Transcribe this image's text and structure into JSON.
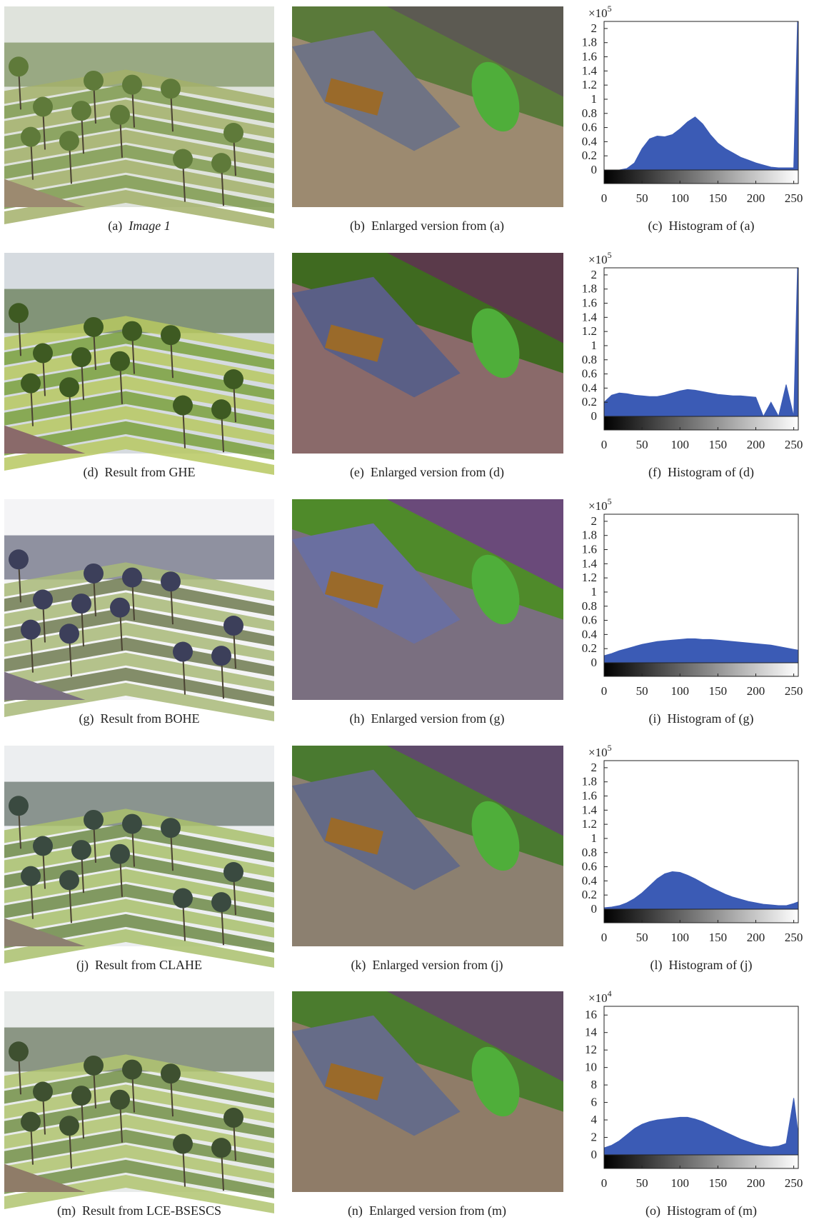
{
  "panels": [
    {
      "label": "(a)",
      "text": "Image 1"
    },
    {
      "label": "(b)",
      "text": "Enlarged version from (a)"
    },
    {
      "label": "(c)",
      "text": "Histogram of (a)"
    },
    {
      "label": "(d)",
      "text": "Result from GHE"
    },
    {
      "label": "(e)",
      "text": "Enlarged version from (d)"
    },
    {
      "label": "(f)",
      "text": "Histogram of (d)"
    },
    {
      "label": "(g)",
      "text": "Result from BOHE"
    },
    {
      "label": "(h)",
      "text": "Enlarged version from (g)"
    },
    {
      "label": "(i)",
      "text": "Histogram of (g)"
    },
    {
      "label": "(j)",
      "text": "Result from CLAHE"
    },
    {
      "label": "(k)",
      "text": "Enlarged version from (j)"
    },
    {
      "label": "(l)",
      "text": "Histogram of (j)"
    },
    {
      "label": "(m)",
      "text": "Result from LCE-BSESCS"
    },
    {
      "label": "(n)",
      "text": "Enlarged version from (m)"
    },
    {
      "label": "(o)",
      "text": "Histogram of (m)"
    }
  ],
  "chart_data": [
    {
      "type": "area",
      "scale_label": {
        "base": "×10",
        "exponent": "5"
      },
      "color": "#3b5bb5",
      "x": [
        0,
        10,
        20,
        30,
        40,
        50,
        60,
        70,
        80,
        90,
        100,
        110,
        120,
        130,
        140,
        150,
        160,
        170,
        180,
        190,
        200,
        210,
        220,
        230,
        240,
        250,
        255
      ],
      "values": [
        0,
        0,
        0,
        0.02,
        0.1,
        0.3,
        0.44,
        0.48,
        0.47,
        0.5,
        0.58,
        0.68,
        0.75,
        0.65,
        0.5,
        0.38,
        0.3,
        0.24,
        0.18,
        0.14,
        0.1,
        0.07,
        0.04,
        0.03,
        0.03,
        0.03,
        2.1
      ],
      "xlim": [
        0,
        256
      ],
      "xticks": [
        0,
        50,
        100,
        150,
        200,
        250
      ],
      "ylim": [
        0,
        2.1
      ],
      "yticks": [
        0,
        0.2,
        0.4,
        0.6,
        0.8,
        1,
        1.2,
        1.4,
        1.6,
        1.8,
        2
      ]
    },
    {
      "type": "area",
      "scale_label": {
        "base": "×10",
        "exponent": "5"
      },
      "color": "#3b5bb5",
      "x": [
        0,
        10,
        20,
        30,
        40,
        50,
        60,
        70,
        80,
        90,
        100,
        110,
        120,
        130,
        140,
        150,
        160,
        170,
        180,
        190,
        200,
        210,
        220,
        230,
        240,
        250,
        255
      ],
      "values": [
        0.2,
        0.3,
        0.33,
        0.32,
        0.3,
        0.29,
        0.28,
        0.28,
        0.3,
        0.33,
        0.36,
        0.38,
        0.37,
        0.35,
        0.33,
        0.31,
        0.3,
        0.29,
        0.29,
        0.28,
        0.27,
        0,
        0.2,
        0,
        0.45,
        0,
        2.1
      ],
      "xlim": [
        0,
        256
      ],
      "xticks": [
        0,
        50,
        100,
        150,
        200,
        250
      ],
      "ylim": [
        0,
        2.1
      ],
      "yticks": [
        0,
        0.2,
        0.4,
        0.6,
        0.8,
        1,
        1.2,
        1.4,
        1.6,
        1.8,
        2
      ]
    },
    {
      "type": "area",
      "scale_label": {
        "base": "×10",
        "exponent": "5"
      },
      "color": "#3b5bb5",
      "x": [
        0,
        10,
        20,
        30,
        40,
        50,
        60,
        70,
        80,
        90,
        100,
        110,
        120,
        130,
        140,
        150,
        160,
        170,
        180,
        190,
        200,
        210,
        220,
        230,
        240,
        250,
        255
      ],
      "values": [
        0.1,
        0.13,
        0.17,
        0.2,
        0.23,
        0.26,
        0.28,
        0.3,
        0.31,
        0.32,
        0.33,
        0.34,
        0.34,
        0.33,
        0.33,
        0.32,
        0.31,
        0.3,
        0.29,
        0.28,
        0.27,
        0.26,
        0.25,
        0.23,
        0.21,
        0.19,
        0.18
      ],
      "xlim": [
        0,
        256
      ],
      "xticks": [
        0,
        50,
        100,
        150,
        200,
        250
      ],
      "ylim": [
        0,
        2.1
      ],
      "yticks": [
        0,
        0.2,
        0.4,
        0.6,
        0.8,
        1,
        1.2,
        1.4,
        1.6,
        1.8,
        2
      ]
    },
    {
      "type": "area",
      "scale_label": {
        "base": "×10",
        "exponent": "5"
      },
      "color": "#3b5bb5",
      "x": [
        0,
        10,
        20,
        30,
        40,
        50,
        60,
        70,
        80,
        90,
        100,
        110,
        120,
        130,
        140,
        150,
        160,
        170,
        180,
        190,
        200,
        210,
        220,
        230,
        240,
        250,
        255
      ],
      "values": [
        0.02,
        0.03,
        0.05,
        0.09,
        0.15,
        0.23,
        0.33,
        0.43,
        0.5,
        0.53,
        0.52,
        0.48,
        0.43,
        0.37,
        0.31,
        0.26,
        0.21,
        0.17,
        0.14,
        0.11,
        0.09,
        0.07,
        0.06,
        0.05,
        0.05,
        0.08,
        0.1
      ],
      "xlim": [
        0,
        256
      ],
      "xticks": [
        0,
        50,
        100,
        150,
        200,
        250
      ],
      "ylim": [
        0,
        2.1
      ],
      "yticks": [
        0,
        0.2,
        0.4,
        0.6,
        0.8,
        1,
        1.2,
        1.4,
        1.6,
        1.8,
        2
      ]
    },
    {
      "type": "area",
      "scale_label": {
        "base": "×10",
        "exponent": "4"
      },
      "color": "#3b5bb5",
      "x": [
        0,
        10,
        20,
        30,
        40,
        50,
        60,
        70,
        80,
        90,
        100,
        110,
        120,
        130,
        140,
        150,
        160,
        170,
        180,
        190,
        200,
        210,
        220,
        230,
        240,
        250,
        255
      ],
      "values": [
        0.8,
        1.1,
        1.6,
        2.3,
        3,
        3.5,
        3.8,
        4,
        4.1,
        4.2,
        4.3,
        4.3,
        4.1,
        3.8,
        3.4,
        3,
        2.6,
        2.2,
        1.8,
        1.5,
        1.2,
        1,
        0.9,
        1,
        1.3,
        6.5,
        3
      ],
      "xlim": [
        0,
        256
      ],
      "xticks": [
        0,
        50,
        100,
        150,
        200,
        250
      ],
      "ylim": [
        0,
        17
      ],
      "yticks": [
        0,
        2,
        4,
        6,
        8,
        10,
        12,
        14,
        16
      ]
    }
  ]
}
